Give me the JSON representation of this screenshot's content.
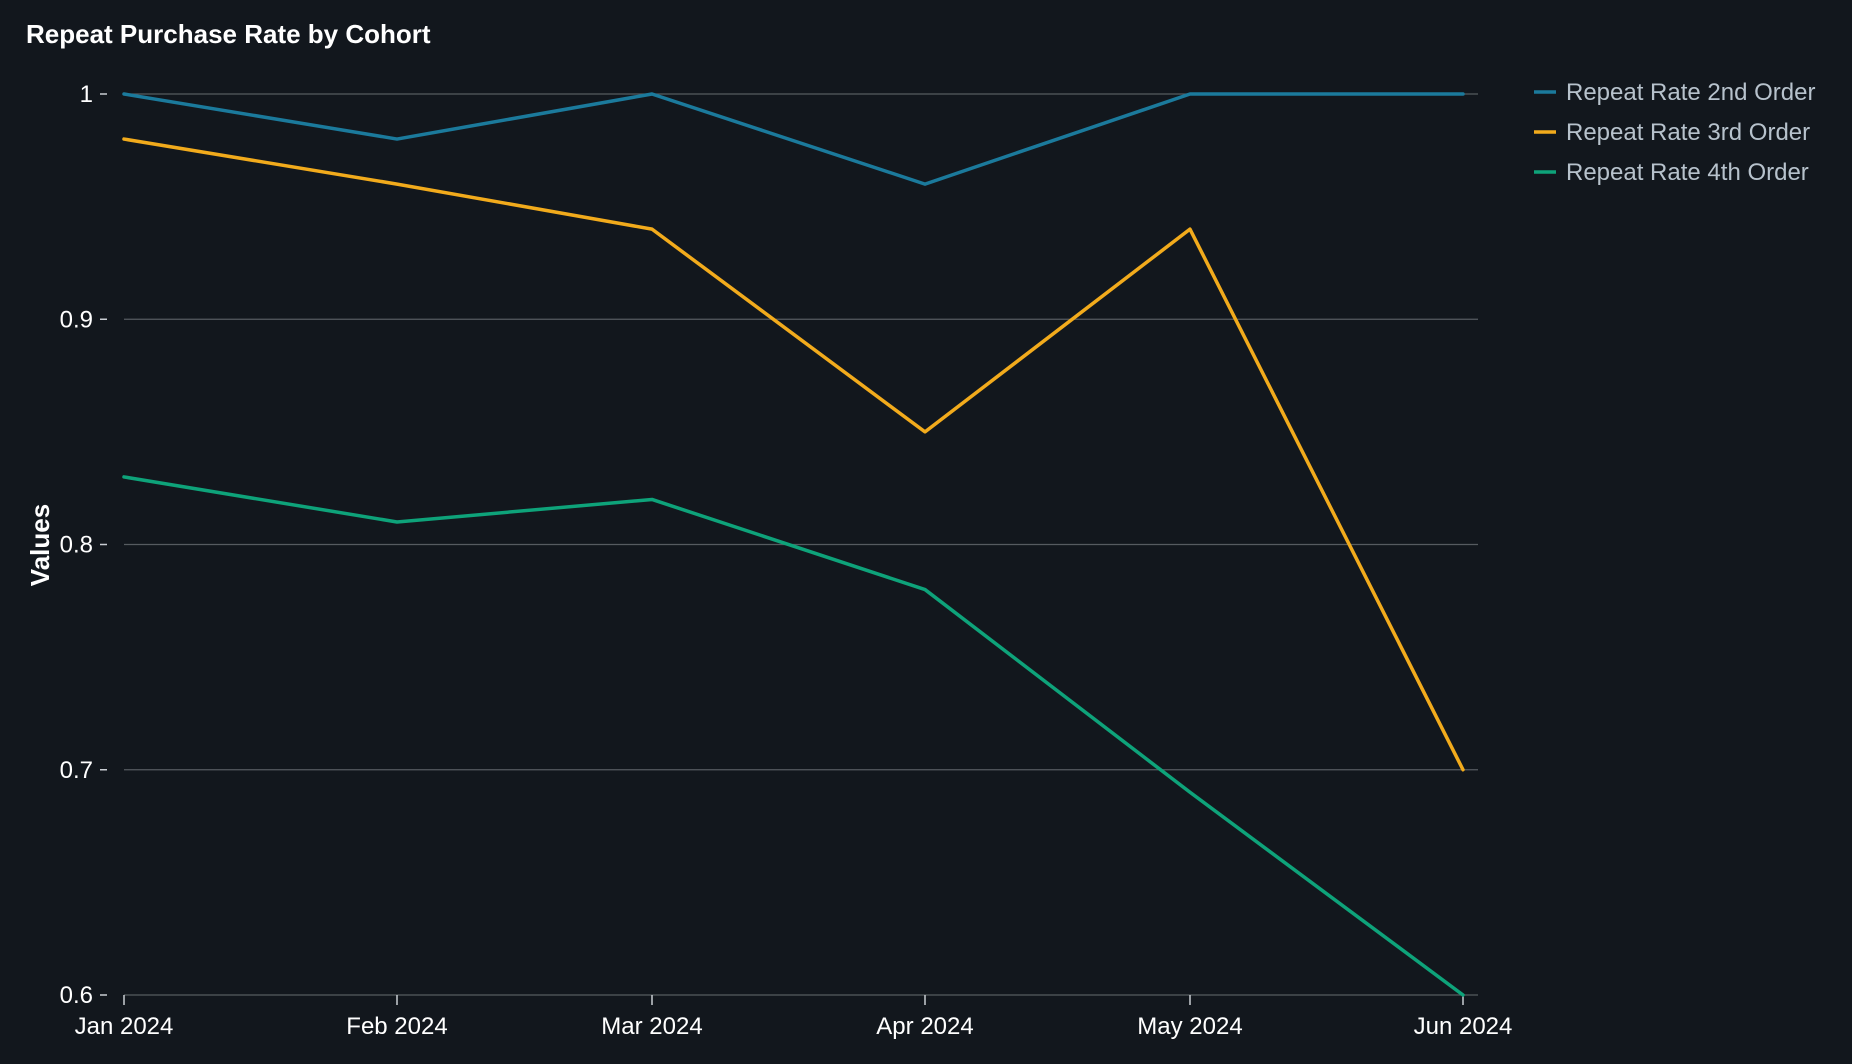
{
  "chart_data": {
    "type": "line",
    "title": "Repeat Purchase Rate by Cohort",
    "xlabel": "",
    "ylabel": "Values",
    "categories": [
      "Jan 2024",
      "Feb 2024",
      "Mar 2024",
      "Apr 2024",
      "May 2024",
      "Jun 2024"
    ],
    "ylim": [
      0.6,
      1.0
    ],
    "yticks": [
      "1",
      "0.9",
      "0.8",
      "0.7",
      "0.6"
    ],
    "ytick_values": [
      1.0,
      0.9,
      0.8,
      0.7,
      0.6
    ],
    "grid": true,
    "legend_position": "top-right",
    "series": [
      {
        "name": "Repeat Rate 2nd Order",
        "color": "#1b7a9c",
        "values": [
          1.0,
          0.98,
          1.0,
          0.96,
          1.0,
          1.0
        ]
      },
      {
        "name": "Repeat Rate 3rd Order",
        "color": "#f2ab1c",
        "values": [
          0.98,
          0.96,
          0.94,
          0.85,
          0.94,
          0.7
        ]
      },
      {
        "name": "Repeat Rate 4th Order",
        "color": "#0ea37a",
        "values": [
          0.83,
          0.81,
          0.82,
          0.78,
          0.69,
          0.6
        ]
      }
    ]
  }
}
